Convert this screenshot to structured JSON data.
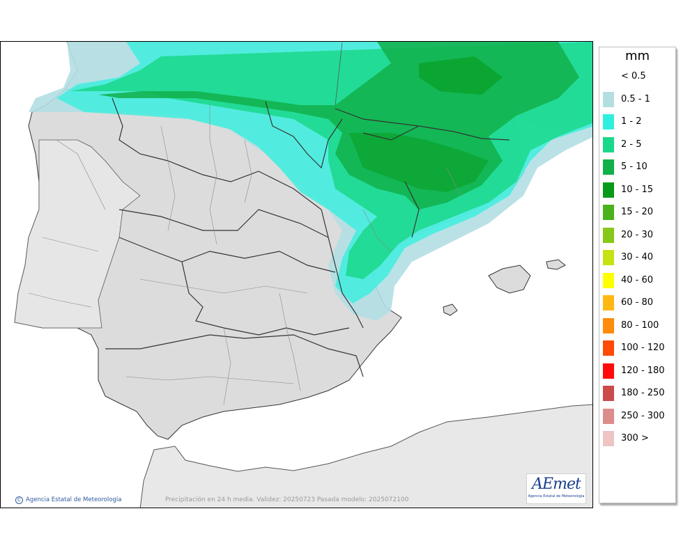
{
  "legend": {
    "unit": "mm",
    "items": [
      {
        "label": "< 0.5",
        "color": "#ffffff"
      },
      {
        "label": "0.5 - 1",
        "color": "#b3dfe3"
      },
      {
        "label": "1 - 2",
        "color": "#2ff0de"
      },
      {
        "label": "2 - 5",
        "color": "#1ad88a"
      },
      {
        "label": "5 - 10",
        "color": "#10b04a"
      },
      {
        "label": "10 - 15",
        "color": "#079a1a"
      },
      {
        "label": "15 - 20",
        "color": "#4bb21b"
      },
      {
        "label": "20 - 30",
        "color": "#86c81a"
      },
      {
        "label": "30 - 40",
        "color": "#c6e212"
      },
      {
        "label": "40 - 60",
        "color": "#ffff00"
      },
      {
        "label": "60 - 80",
        "color": "#ffb712"
      },
      {
        "label": "80 - 100",
        "color": "#ff8c0a"
      },
      {
        "label": "100 - 120",
        "color": "#ff4a0a"
      },
      {
        "label": "120 - 180",
        "color": "#ff0a0a"
      },
      {
        "label": "180 - 250",
        "color": "#cc4a4a"
      },
      {
        "label": "250 - 300",
        "color": "#dd8c8c"
      },
      {
        "label": "300 >",
        "color": "#eec4c4"
      }
    ]
  },
  "footer": {
    "copyright": "Agencia Estatal de Meteorología",
    "caption": "Precipitación en 24 h media. Validez: 20250723 Pasada modelo: 2025072100",
    "logo_text": "AEmet",
    "logo_subtext": "Agencia Estatal de Meteorología"
  },
  "colors": {
    "land": "#dcdcdc",
    "land_outside": "#e8e8e8",
    "sea": "#ffffff",
    "border": "#333333"
  }
}
